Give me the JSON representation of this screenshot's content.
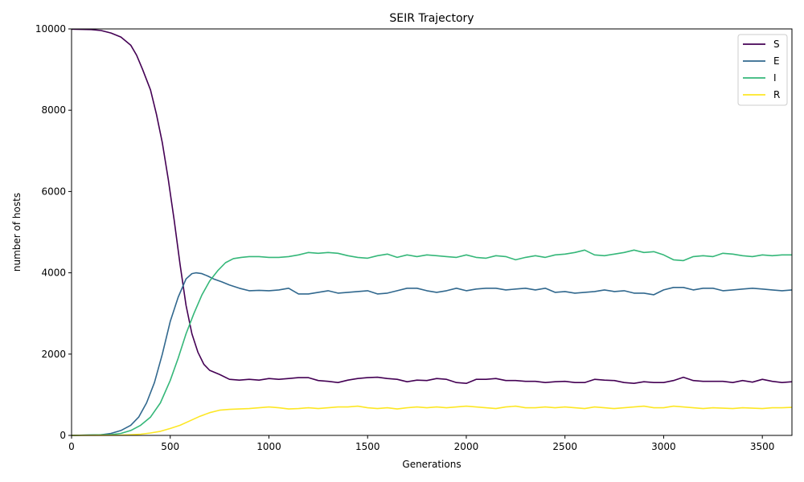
{
  "chart_data": {
    "type": "line",
    "title": "SEIR Trajectory",
    "xlabel": "Generations",
    "ylabel": "number of hosts",
    "xlim": [
      0,
      3650
    ],
    "ylim": [
      0,
      10000
    ],
    "xticks": [
      0,
      500,
      1000,
      1500,
      2000,
      2500,
      3000,
      3500
    ],
    "yticks": [
      0,
      2000,
      4000,
      6000,
      8000,
      10000
    ],
    "grid": false,
    "legend": "top-right",
    "series": [
      {
        "name": "S",
        "color": "#440154",
        "x": [
          0,
          100,
          150,
          200,
          250,
          300,
          330,
          360,
          400,
          430,
          460,
          490,
          520,
          550,
          580,
          610,
          640,
          670,
          700,
          750,
          800,
          850,
          900,
          950,
          1000,
          1050,
          1100,
          1150,
          1200,
          1250,
          1300,
          1350,
          1400,
          1450,
          1500,
          1550,
          1600,
          1650,
          1700,
          1750,
          1800,
          1850,
          1900,
          1950,
          2000,
          2050,
          2100,
          2150,
          2200,
          2250,
          2300,
          2350,
          2400,
          2450,
          2500,
          2550,
          2600,
          2650,
          2700,
          2750,
          2800,
          2850,
          2900,
          2950,
          3000,
          3050,
          3100,
          3150,
          3200,
          3250,
          3300,
          3350,
          3400,
          3450,
          3500,
          3550,
          3600,
          3650
        ],
        "values": [
          9995,
          9985,
          9960,
          9900,
          9800,
          9600,
          9350,
          9000,
          8500,
          7900,
          7200,
          6300,
          5300,
          4200,
          3200,
          2500,
          2050,
          1750,
          1600,
          1500,
          1380,
          1360,
          1380,
          1360,
          1400,
          1380,
          1400,
          1420,
          1420,
          1350,
          1330,
          1300,
          1360,
          1400,
          1420,
          1430,
          1400,
          1380,
          1320,
          1360,
          1350,
          1400,
          1380,
          1300,
          1280,
          1380,
          1380,
          1400,
          1350,
          1350,
          1330,
          1330,
          1300,
          1320,
          1330,
          1300,
          1300,
          1380,
          1360,
          1350,
          1300,
          1280,
          1320,
          1300,
          1300,
          1350,
          1430,
          1350,
          1330,
          1330,
          1330,
          1300,
          1350,
          1310,
          1380,
          1330,
          1300,
          1320
        ]
      },
      {
        "name": "E",
        "color": "#31688e",
        "x": [
          0,
          150,
          200,
          250,
          300,
          340,
          380,
          420,
          460,
          500,
          540,
          580,
          610,
          630,
          660,
          690,
          720,
          760,
          800,
          850,
          900,
          950,
          1000,
          1050,
          1100,
          1150,
          1200,
          1250,
          1300,
          1350,
          1400,
          1450,
          1500,
          1550,
          1600,
          1650,
          1700,
          1750,
          1800,
          1850,
          1900,
          1950,
          2000,
          2050,
          2100,
          2150,
          2200,
          2250,
          2300,
          2350,
          2400,
          2450,
          2500,
          2550,
          2600,
          2650,
          2700,
          2750,
          2800,
          2850,
          2900,
          2950,
          3000,
          3050,
          3100,
          3150,
          3200,
          3250,
          3300,
          3350,
          3400,
          3450,
          3500,
          3550,
          3600,
          3650
        ],
        "values": [
          0,
          15,
          50,
          120,
          250,
          450,
          800,
          1300,
          2000,
          2800,
          3400,
          3850,
          3980,
          4000,
          3980,
          3920,
          3850,
          3780,
          3700,
          3620,
          3560,
          3570,
          3560,
          3580,
          3620,
          3480,
          3480,
          3520,
          3560,
          3500,
          3520,
          3540,
          3560,
          3480,
          3500,
          3560,
          3620,
          3620,
          3560,
          3520,
          3560,
          3620,
          3560,
          3600,
          3620,
          3620,
          3580,
          3600,
          3620,
          3580,
          3620,
          3520,
          3540,
          3500,
          3520,
          3540,
          3580,
          3540,
          3560,
          3500,
          3500,
          3460,
          3580,
          3640,
          3640,
          3580,
          3620,
          3620,
          3560,
          3580,
          3600,
          3620,
          3600,
          3580,
          3560,
          3580
        ]
      },
      {
        "name": "I",
        "color": "#35b779",
        "x": [
          0,
          200,
          250,
          300,
          350,
          400,
          450,
          500,
          540,
          580,
          620,
          660,
          700,
          740,
          780,
          820,
          860,
          900,
          950,
          1000,
          1050,
          1100,
          1150,
          1200,
          1250,
          1300,
          1350,
          1400,
          1450,
          1500,
          1550,
          1600,
          1650,
          1700,
          1750,
          1800,
          1850,
          1900,
          1950,
          2000,
          2050,
          2100,
          2150,
          2200,
          2250,
          2300,
          2350,
          2400,
          2450,
          2500,
          2550,
          2600,
          2650,
          2700,
          2750,
          2800,
          2850,
          2900,
          2950,
          3000,
          3050,
          3100,
          3150,
          3200,
          3250,
          3300,
          3350,
          3400,
          3450,
          3500,
          3550,
          3600,
          3650
        ],
        "values": [
          0,
          20,
          50,
          120,
          250,
          450,
          800,
          1350,
          1900,
          2500,
          3000,
          3450,
          3800,
          4050,
          4250,
          4350,
          4380,
          4400,
          4400,
          4380,
          4380,
          4400,
          4440,
          4500,
          4480,
          4500,
          4480,
          4420,
          4380,
          4360,
          4420,
          4460,
          4380,
          4440,
          4400,
          4440,
          4420,
          4400,
          4380,
          4440,
          4380,
          4360,
          4420,
          4400,
          4320,
          4380,
          4420,
          4380,
          4440,
          4460,
          4500,
          4560,
          4440,
          4420,
          4460,
          4500,
          4560,
          4500,
          4520,
          4440,
          4320,
          4300,
          4400,
          4420,
          4400,
          4480,
          4460,
          4420,
          4400,
          4440,
          4420,
          4440,
          4440
        ]
      },
      {
        "name": "R",
        "color": "#fde725",
        "x": [
          0,
          250,
          300,
          350,
          400,
          450,
          500,
          550,
          600,
          650,
          700,
          750,
          800,
          850,
          900,
          950,
          1000,
          1050,
          1100,
          1150,
          1200,
          1250,
          1300,
          1350,
          1400,
          1450,
          1500,
          1550,
          1600,
          1650,
          1700,
          1750,
          1800,
          1850,
          1900,
          1950,
          2000,
          2050,
          2100,
          2150,
          2200,
          2250,
          2300,
          2350,
          2400,
          2450,
          2500,
          2550,
          2600,
          2650,
          2700,
          2750,
          2800,
          2850,
          2900,
          2950,
          3000,
          3050,
          3100,
          3150,
          3200,
          3250,
          3300,
          3350,
          3400,
          3450,
          3500,
          3550,
          3600,
          3650
        ],
        "values": [
          0,
          5,
          15,
          30,
          60,
          100,
          170,
          250,
          360,
          470,
          560,
          620,
          640,
          650,
          660,
          680,
          700,
          680,
          650,
          660,
          680,
          660,
          680,
          700,
          700,
          720,
          680,
          660,
          680,
          650,
          680,
          700,
          680,
          700,
          680,
          700,
          720,
          700,
          680,
          660,
          700,
          720,
          680,
          680,
          700,
          680,
          700,
          680,
          660,
          700,
          680,
          660,
          680,
          700,
          720,
          680,
          680,
          720,
          700,
          680,
          660,
          680,
          670,
          660,
          680,
          670,
          660,
          680,
          680,
          690
        ]
      }
    ]
  }
}
